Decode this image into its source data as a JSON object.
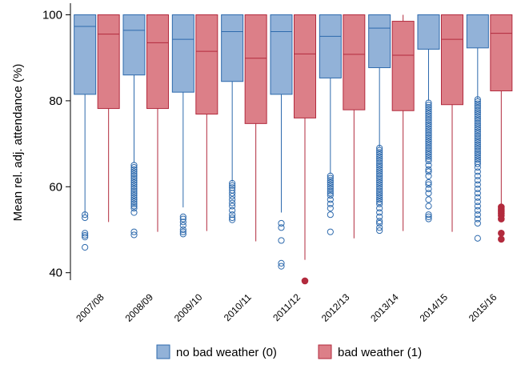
{
  "chart_data": {
    "type": "box",
    "ylabel": "Mean rel. adj. attendance (%)",
    "xlabel": "",
    "ylim": [
      36,
      103
    ],
    "yticks": [
      40,
      60,
      80,
      100
    ],
    "categories": [
      "2007/08",
      "2008/09",
      "2009/10",
      "2010/11",
      "2011/12",
      "2012/13",
      "2013/14",
      "2014/15",
      "2015/16"
    ],
    "legend_position": "bottom",
    "series": [
      {
        "name": "no bad weather (0)",
        "color": "#92b2d8",
        "stroke": "#2e6aad",
        "boxes": [
          {
            "min": 53.5,
            "q1": 81.5,
            "median": 97.3,
            "q3": 100,
            "max": 100,
            "outliers": [
              53.5,
              52.8,
              49.2,
              48.7,
              48.3,
              45.9
            ],
            "filled_outliers": []
          },
          {
            "min": 65.5,
            "q1": 86.0,
            "median": 96.4,
            "q3": 100,
            "max": 100,
            "outliers": [
              65.0,
              64.5,
              64.0,
              63.5,
              63.0,
              62.5,
              62.0,
              61.5,
              61.0,
              60.5,
              60.0,
              59.5,
              59.0,
              58.5,
              58.0,
              57.5,
              57.0,
              56.5,
              56.0,
              55.5,
              55.0,
              54.0,
              49.5,
              48.8
            ],
            "filled_outliers": []
          },
          {
            "min": 55.2,
            "q1": 82.0,
            "median": 94.3,
            "q3": 100,
            "max": 100,
            "outliers": [
              53.0,
              52.5,
              51.8,
              51.0,
              50.0,
              49.5,
              49.0
            ],
            "filled_outliers": []
          },
          {
            "min": 61.2,
            "q1": 84.5,
            "median": 96.1,
            "q3": 100,
            "max": 100,
            "outliers": [
              60.8,
              60.3,
              59.8,
              59.2,
              58.5,
              57.8,
              57.0,
              56.2,
              55.5,
              54.5,
              53.5,
              52.8,
              52.3
            ],
            "filled_outliers": []
          },
          {
            "min": 54.0,
            "q1": 81.5,
            "median": 96.1,
            "q3": 100,
            "max": 100,
            "outliers": [
              51.5,
              50.5,
              47.5,
              42.2,
              41.5
            ],
            "filled_outliers": []
          },
          {
            "min": 63.0,
            "q1": 85.3,
            "median": 95.0,
            "q3": 100,
            "max": 100,
            "outliers": [
              62.5,
              62.0,
              61.5,
              61.0,
              60.5,
              60.0,
              59.5,
              59.0,
              58.5,
              58.0,
              57.0,
              56.0,
              55.0,
              53.5,
              49.5
            ],
            "filled_outliers": []
          },
          {
            "min": 69.2,
            "q1": 87.7,
            "median": 96.9,
            "q3": 100,
            "max": 100,
            "outliers": [
              69.0,
              68.5,
              68.0,
              67.5,
              67.0,
              66.5,
              66.0,
              65.5,
              65.0,
              64.5,
              64.0,
              63.5,
              63.0,
              62.5,
              62.0,
              61.5,
              61.0,
              60.5,
              60.0,
              59.5,
              59.0,
              58.5,
              58.0,
              57.5,
              57.0,
              56.5,
              56.0,
              55.0,
              54.0,
              53.0,
              52.0,
              51.5,
              50.5,
              49.8
            ],
            "filled_outliers": []
          },
          {
            "min": 80.0,
            "q1": 92.0,
            "median": 100,
            "q3": 100,
            "max": 100,
            "outliers": [
              79.5,
              79.0,
              78.5,
              78.0,
              77.5,
              77.0,
              76.5,
              76.0,
              75.5,
              75.0,
              74.5,
              74.0,
              73.5,
              73.0,
              72.5,
              72.0,
              71.5,
              71.0,
              70.5,
              70.0,
              69.5,
              69.0,
              68.5,
              68.0,
              67.5,
              67.0,
              66.5,
              66.0,
              65.0,
              64.0,
              63.5,
              62.5,
              61.0,
              60.5,
              59.5,
              58.5,
              57.0,
              55.5,
              53.5,
              53.0,
              52.5
            ],
            "filled_outliers": []
          },
          {
            "min": 80.5,
            "q1": 92.3,
            "median": 100,
            "q3": 100,
            "max": 100,
            "outliers": [
              80.3,
              79.8,
              79.3,
              78.8,
              78.3,
              77.8,
              77.3,
              76.8,
              76.3,
              75.8,
              75.3,
              74.8,
              74.3,
              73.8,
              73.3,
              72.8,
              72.3,
              71.8,
              71.3,
              70.8,
              70.3,
              69.8,
              69.3,
              68.8,
              68.3,
              67.8,
              67.3,
              66.8,
              66.3,
              65.8,
              65.3,
              64.5,
              63.5,
              62.5,
              61.5,
              60.5,
              59.5,
              58.5,
              57.5,
              56.5,
              55.5,
              54.5,
              53.5,
              52.5,
              51.5,
              48.0
            ],
            "filled_outliers": []
          }
        ]
      },
      {
        "name": "bad weather (1)",
        "color": "#dc7f88",
        "stroke": "#b22a3d",
        "boxes": [
          {
            "min": 51.8,
            "q1": 78.2,
            "median": 95.5,
            "q3": 100,
            "max": 100,
            "outliers": [],
            "filled_outliers": []
          },
          {
            "min": 49.5,
            "q1": 78.2,
            "median": 93.5,
            "q3": 100,
            "max": 100,
            "outliers": [],
            "filled_outliers": []
          },
          {
            "min": 49.7,
            "q1": 76.9,
            "median": 91.5,
            "q3": 100,
            "max": 100,
            "outliers": [],
            "filled_outliers": []
          },
          {
            "min": 47.3,
            "q1": 74.7,
            "median": 89.9,
            "q3": 100,
            "max": 100,
            "outliers": [],
            "filled_outliers": []
          },
          {
            "min": 43.0,
            "q1": 76.0,
            "median": 90.9,
            "q3": 100,
            "max": 100,
            "outliers": [],
            "filled_outliers": [
              38.1
            ]
          },
          {
            "min": 48.0,
            "q1": 77.9,
            "median": 90.8,
            "q3": 100,
            "max": 100,
            "outliers": [],
            "filled_outliers": []
          },
          {
            "min": 49.7,
            "q1": 77.7,
            "median": 90.6,
            "q3": 98.5,
            "max": 100,
            "outliers": [],
            "filled_outliers": []
          },
          {
            "min": 49.5,
            "q1": 79.1,
            "median": 94.3,
            "q3": 100,
            "max": 100,
            "outliers": [],
            "filled_outliers": []
          },
          {
            "min": 56.0,
            "q1": 82.3,
            "median": 95.7,
            "q3": 100,
            "max": 100,
            "outliers": [],
            "filled_outliers": [
              55.3,
              54.8,
              54.3,
              53.8,
              53.3,
              52.5,
              49.2,
              47.8
            ]
          }
        ]
      }
    ]
  }
}
